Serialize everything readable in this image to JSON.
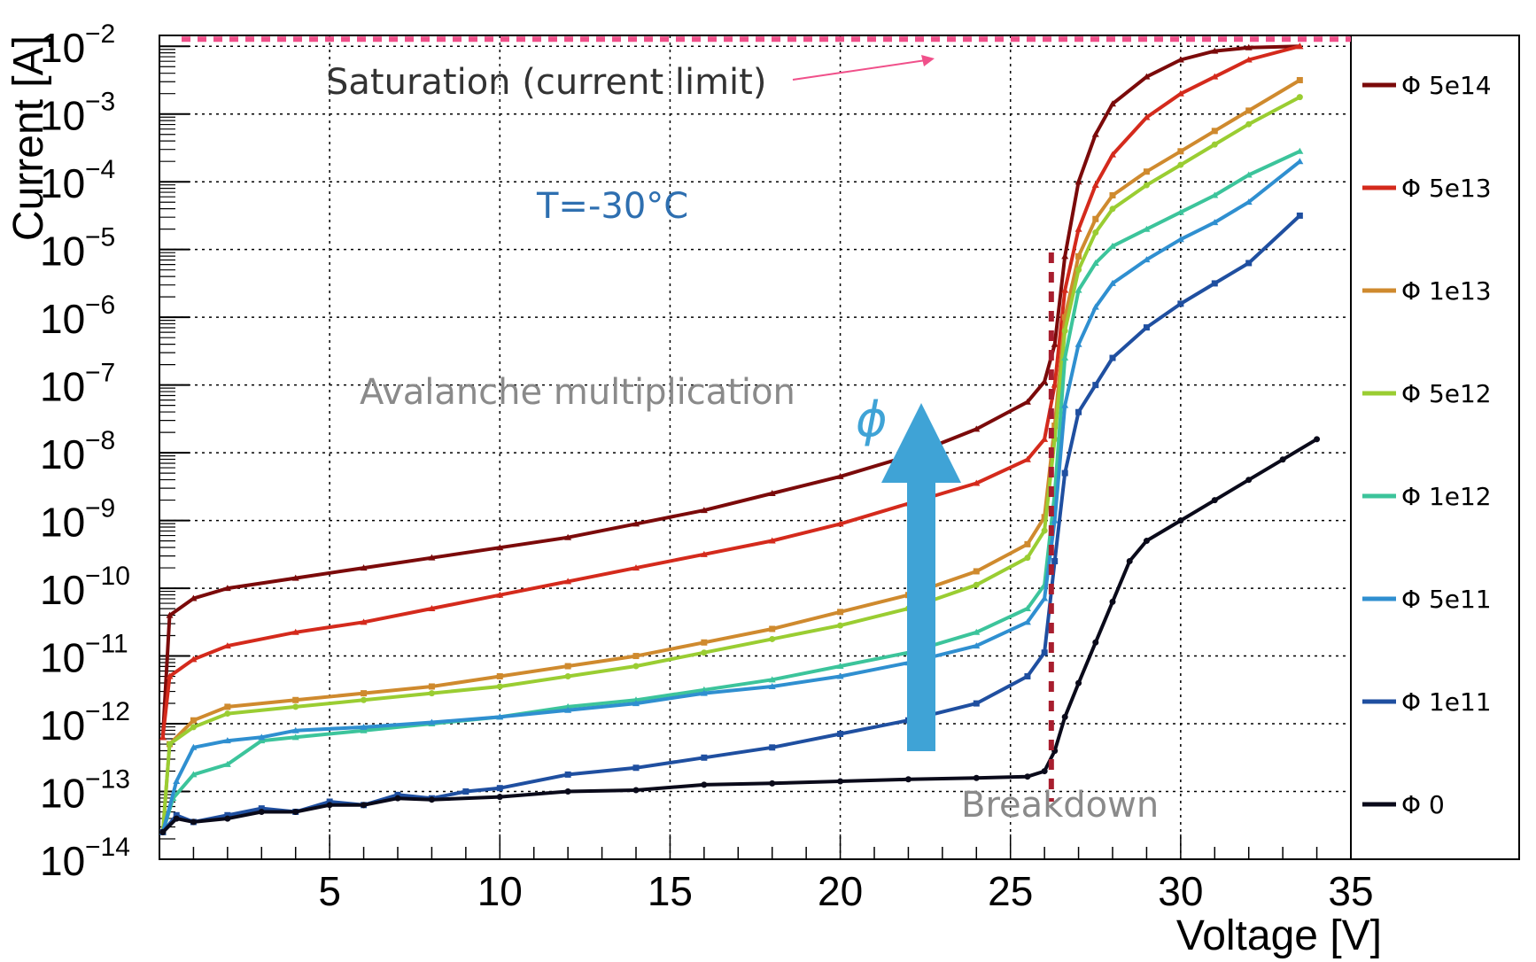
{
  "chart_data": {
    "type": "line",
    "xlabel": "Voltage [V]",
    "ylabel": "Current [A]",
    "xlim": [
      0,
      35
    ],
    "ylim": [
      1e-14,
      0.01
    ],
    "yscale": "log",
    "grid": true,
    "xticks": [
      5,
      10,
      15,
      20,
      25,
      30,
      35
    ],
    "yticks": [
      {
        "base": "10",
        "exp": "−14",
        "value": -14
      },
      {
        "base": "10",
        "exp": "−13",
        "value": -13
      },
      {
        "base": "10",
        "exp": "−12",
        "value": -12
      },
      {
        "base": "10",
        "exp": "−11",
        "value": -11
      },
      {
        "base": "10",
        "exp": "−10",
        "value": -10
      },
      {
        "base": "10",
        "exp": "−9",
        "value": -9
      },
      {
        "base": "10",
        "exp": "−8",
        "value": -8
      },
      {
        "base": "10",
        "exp": "−7",
        "value": -7
      },
      {
        "base": "10",
        "exp": "−6",
        "value": -6
      },
      {
        "base": "10",
        "exp": "−5",
        "value": -5
      },
      {
        "base": "10",
        "exp": "−4",
        "value": -4
      },
      {
        "base": "10",
        "exp": "−3",
        "value": -3
      },
      {
        "base": "10",
        "exp": "−2",
        "value": -2
      }
    ],
    "series": [
      {
        "name": "Φ 5e14",
        "color": "#7b0a0a",
        "marker": "triangle",
        "points": [
          [
            0.1,
            -12.2
          ],
          [
            0.3,
            -10.4
          ],
          [
            1,
            -10.15
          ],
          [
            2,
            -10
          ],
          [
            4,
            -9.85
          ],
          [
            6,
            -9.7
          ],
          [
            8,
            -9.55
          ],
          [
            10,
            -9.4
          ],
          [
            12,
            -9.25
          ],
          [
            14,
            -9.05
          ],
          [
            16,
            -8.85
          ],
          [
            18,
            -8.6
          ],
          [
            20,
            -8.35
          ],
          [
            22,
            -8.05
          ],
          [
            24,
            -7.65
          ],
          [
            25.5,
            -7.25
          ],
          [
            26,
            -6.95
          ],
          [
            26.3,
            -6.4
          ],
          [
            26.6,
            -5.1
          ],
          [
            27,
            -4.0
          ],
          [
            27.5,
            -3.3
          ],
          [
            28,
            -2.85
          ],
          [
            29,
            -2.45
          ],
          [
            30,
            -2.2
          ],
          [
            31,
            -2.07
          ],
          [
            32,
            -2.02
          ],
          [
            33.5,
            -2.0
          ]
        ]
      },
      {
        "name": "Φ 5e13",
        "color": "#d42a1c",
        "marker": "triangle",
        "points": [
          [
            0.1,
            -12.2
          ],
          [
            0.3,
            -11.3
          ],
          [
            1,
            -11.05
          ],
          [
            2,
            -10.85
          ],
          [
            4,
            -10.65
          ],
          [
            6,
            -10.5
          ],
          [
            8,
            -10.3
          ],
          [
            10,
            -10.1
          ],
          [
            12,
            -9.9
          ],
          [
            14,
            -9.7
          ],
          [
            16,
            -9.5
          ],
          [
            18,
            -9.3
          ],
          [
            20,
            -9.05
          ],
          [
            22,
            -8.75
          ],
          [
            24,
            -8.45
          ],
          [
            25.5,
            -8.1
          ],
          [
            26,
            -7.8
          ],
          [
            26.3,
            -7.0
          ],
          [
            26.6,
            -5.6
          ],
          [
            27,
            -4.7
          ],
          [
            27.5,
            -4.05
          ],
          [
            28,
            -3.6
          ],
          [
            29,
            -3.05
          ],
          [
            30,
            -2.7
          ],
          [
            31,
            -2.45
          ],
          [
            32,
            -2.2
          ],
          [
            33.5,
            -2.0
          ]
        ]
      },
      {
        "name": "Φ 1e13",
        "color": "#cf8a2e",
        "marker": "square",
        "points": [
          [
            0.1,
            -13.6
          ],
          [
            0.3,
            -12.3
          ],
          [
            1,
            -11.95
          ],
          [
            2,
            -11.75
          ],
          [
            4,
            -11.65
          ],
          [
            6,
            -11.55
          ],
          [
            8,
            -11.45
          ],
          [
            10,
            -11.3
          ],
          [
            12,
            -11.15
          ],
          [
            14,
            -11.0
          ],
          [
            16,
            -10.8
          ],
          [
            18,
            -10.6
          ],
          [
            20,
            -10.35
          ],
          [
            22,
            -10.1
          ],
          [
            24,
            -9.75
          ],
          [
            25.5,
            -9.35
          ],
          [
            26,
            -8.95
          ],
          [
            26.3,
            -7.6
          ],
          [
            26.6,
            -6.0
          ],
          [
            27,
            -5.1
          ],
          [
            27.5,
            -4.55
          ],
          [
            28,
            -4.2
          ],
          [
            29,
            -3.85
          ],
          [
            30,
            -3.55
          ],
          [
            31,
            -3.25
          ],
          [
            32,
            -2.95
          ],
          [
            33.5,
            -2.5
          ]
        ]
      },
      {
        "name": "Φ 5e12",
        "color": "#9acd32",
        "marker": "circle",
        "points": [
          [
            0.1,
            -13.6
          ],
          [
            0.3,
            -12.3
          ],
          [
            1,
            -12.05
          ],
          [
            2,
            -11.85
          ],
          [
            4,
            -11.75
          ],
          [
            6,
            -11.65
          ],
          [
            8,
            -11.55
          ],
          [
            10,
            -11.45
          ],
          [
            12,
            -11.3
          ],
          [
            14,
            -11.15
          ],
          [
            16,
            -10.95
          ],
          [
            18,
            -10.75
          ],
          [
            20,
            -10.55
          ],
          [
            22,
            -10.3
          ],
          [
            24,
            -9.95
          ],
          [
            25.5,
            -9.55
          ],
          [
            26,
            -9.15
          ],
          [
            26.3,
            -7.8
          ],
          [
            26.6,
            -6.2
          ],
          [
            27,
            -5.3
          ],
          [
            27.5,
            -4.75
          ],
          [
            28,
            -4.4
          ],
          [
            29,
            -4.05
          ],
          [
            30,
            -3.75
          ],
          [
            31,
            -3.45
          ],
          [
            32,
            -3.15
          ],
          [
            33.5,
            -2.75
          ]
        ]
      },
      {
        "name": "Φ 1e12",
        "color": "#3cc49b",
        "marker": "triangle",
        "points": [
          [
            0.1,
            -13.6
          ],
          [
            0.4,
            -13.1
          ],
          [
            1,
            -12.75
          ],
          [
            2,
            -12.6
          ],
          [
            3,
            -12.25
          ],
          [
            4,
            -12.2
          ],
          [
            6,
            -12.1
          ],
          [
            8,
            -12.0
          ],
          [
            10,
            -11.9
          ],
          [
            12,
            -11.75
          ],
          [
            14,
            -11.65
          ],
          [
            16,
            -11.5
          ],
          [
            18,
            -11.35
          ],
          [
            20,
            -11.15
          ],
          [
            22,
            -10.95
          ],
          [
            24,
            -10.65
          ],
          [
            25.5,
            -10.3
          ],
          [
            26,
            -9.95
          ],
          [
            26.3,
            -8.6
          ],
          [
            26.6,
            -6.6
          ],
          [
            27,
            -5.6
          ],
          [
            27.5,
            -5.2
          ],
          [
            28,
            -4.95
          ],
          [
            29,
            -4.7
          ],
          [
            30,
            -4.45
          ],
          [
            31,
            -4.2
          ],
          [
            32,
            -3.9
          ],
          [
            33.5,
            -3.55
          ]
        ]
      },
      {
        "name": "Φ 5e11",
        "color": "#2f8fd0",
        "marker": "triangle",
        "points": [
          [
            0.1,
            -13.6
          ],
          [
            0.5,
            -12.85
          ],
          [
            1,
            -12.35
          ],
          [
            2,
            -12.25
          ],
          [
            3,
            -12.2
          ],
          [
            4,
            -12.1
          ],
          [
            6,
            -12.05
          ],
          [
            8,
            -11.98
          ],
          [
            10,
            -11.9
          ],
          [
            12,
            -11.8
          ],
          [
            14,
            -11.7
          ],
          [
            16,
            -11.55
          ],
          [
            18,
            -11.45
          ],
          [
            20,
            -11.3
          ],
          [
            22,
            -11.1
          ],
          [
            24,
            -10.85
          ],
          [
            25.5,
            -10.5
          ],
          [
            26,
            -10.15
          ],
          [
            26.3,
            -9.0
          ],
          [
            26.6,
            -7.3
          ],
          [
            27,
            -6.4
          ],
          [
            27.5,
            -5.85
          ],
          [
            28,
            -5.5
          ],
          [
            29,
            -5.15
          ],
          [
            30,
            -4.85
          ],
          [
            31,
            -4.6
          ],
          [
            32,
            -4.3
          ],
          [
            33.5,
            -3.7
          ]
        ]
      },
      {
        "name": "Φ 1e11",
        "color": "#1f4fa0",
        "marker": "square",
        "points": [
          [
            0.1,
            -13.6
          ],
          [
            0.5,
            -13.35
          ],
          [
            1,
            -13.45
          ],
          [
            2,
            -13.35
          ],
          [
            3,
            -13.25
          ],
          [
            4,
            -13.3
          ],
          [
            5,
            -13.15
          ],
          [
            6,
            -13.2
          ],
          [
            7,
            -13.05
          ],
          [
            8,
            -13.1
          ],
          [
            9,
            -13.0
          ],
          [
            10,
            -12.95
          ],
          [
            12,
            -12.75
          ],
          [
            14,
            -12.65
          ],
          [
            16,
            -12.5
          ],
          [
            18,
            -12.35
          ],
          [
            20,
            -12.15
          ],
          [
            22,
            -11.95
          ],
          [
            24,
            -11.7
          ],
          [
            25.5,
            -11.3
          ],
          [
            26,
            -10.95
          ],
          [
            26.3,
            -9.6
          ],
          [
            26.6,
            -8.3
          ],
          [
            27,
            -7.4
          ],
          [
            27.5,
            -7.0
          ],
          [
            28,
            -6.6
          ],
          [
            29,
            -6.15
          ],
          [
            30,
            -5.8
          ],
          [
            31,
            -5.5
          ],
          [
            32,
            -5.2
          ],
          [
            33.5,
            -4.5
          ]
        ]
      },
      {
        "name": "Φ 0",
        "color": "#0a0a1a",
        "marker": "circle",
        "points": [
          [
            0.1,
            -13.6
          ],
          [
            0.5,
            -13.4
          ],
          [
            1,
            -13.45
          ],
          [
            2,
            -13.4
          ],
          [
            3,
            -13.3
          ],
          [
            4,
            -13.3
          ],
          [
            5,
            -13.2
          ],
          [
            6,
            -13.2
          ],
          [
            7,
            -13.1
          ],
          [
            8,
            -13.12
          ],
          [
            10,
            -13.08
          ],
          [
            12,
            -13.0
          ],
          [
            14,
            -12.98
          ],
          [
            16,
            -12.9
          ],
          [
            18,
            -12.88
          ],
          [
            20,
            -12.85
          ],
          [
            22,
            -12.82
          ],
          [
            24,
            -12.8
          ],
          [
            25.5,
            -12.78
          ],
          [
            26,
            -12.7
          ],
          [
            26.3,
            -12.4
          ],
          [
            26.6,
            -11.9
          ],
          [
            27,
            -11.4
          ],
          [
            27.5,
            -10.8
          ],
          [
            28,
            -10.2
          ],
          [
            28.5,
            -9.6
          ],
          [
            29,
            -9.3
          ],
          [
            30,
            -9.0
          ],
          [
            31,
            -8.7
          ],
          [
            32,
            -8.4
          ],
          [
            33,
            -8.1
          ],
          [
            34,
            -7.8
          ]
        ]
      }
    ],
    "annotations": {
      "saturation": "Saturation (current limit)",
      "temperature": "T=-30°C",
      "avalanche": "Avalanche multiplication",
      "phi_symbol": "ϕ",
      "breakdown": "Breakdown"
    },
    "saturation_level": -2,
    "breakdown_voltage": 26.2,
    "colors": {
      "saturation_line": "#f0508a",
      "breakdown_line": "#a81e2e",
      "arrow": "#3fa3d6",
      "annotation_gray": "#8a8a8a",
      "annotation_dark": "#333333",
      "temperature_text": "#2e6fb0"
    }
  }
}
